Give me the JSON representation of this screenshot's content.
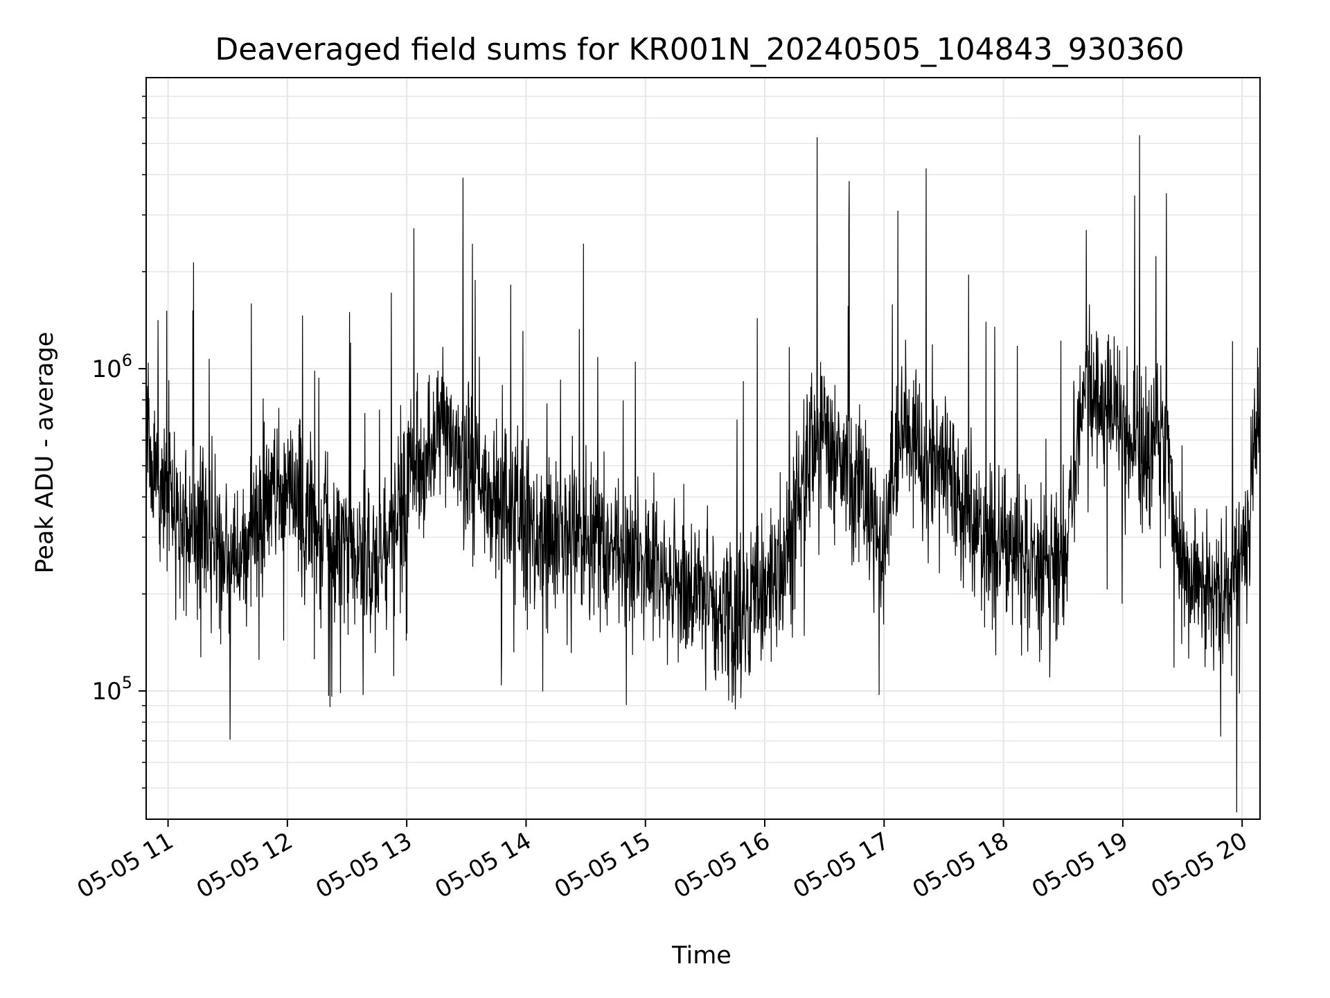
{
  "chart_data": {
    "type": "line",
    "title": "Deaveraged field sums for KR001N_20240505_104843_930360",
    "xlabel": "Time",
    "ylabel": "Peak ADU - average",
    "y_scale": "log",
    "ylim": [
      40000,
      8000000
    ],
    "xlim": [
      "2024-05-05 10:49",
      "2024-05-05 20:09"
    ],
    "grid": true,
    "legend": "none",
    "line_color": "#000000",
    "x_ticks": [
      {
        "value": "2024-05-05 11:00",
        "label": "05-05 11"
      },
      {
        "value": "2024-05-05 12:00",
        "label": "05-05 12"
      },
      {
        "value": "2024-05-05 13:00",
        "label": "05-05 13"
      },
      {
        "value": "2024-05-05 14:00",
        "label": "05-05 14"
      },
      {
        "value": "2024-05-05 15:00",
        "label": "05-05 15"
      },
      {
        "value": "2024-05-05 16:00",
        "label": "05-05 16"
      },
      {
        "value": "2024-05-05 17:00",
        "label": "05-05 17"
      },
      {
        "value": "2024-05-05 18:00",
        "label": "05-05 18"
      },
      {
        "value": "2024-05-05 19:00",
        "label": "05-05 19"
      },
      {
        "value": "2024-05-05 20:00",
        "label": "05-05 20"
      }
    ],
    "y_ticks": [
      {
        "value": 100000,
        "base": "10",
        "exp": "5"
      },
      {
        "value": 1000000,
        "base": "10",
        "exp": "6"
      }
    ],
    "series": [
      {
        "x": [
          "2024-05-05 10:49",
          "2024-05-05 11:00",
          "2024-05-05 11:10",
          "2024-05-05 11:20",
          "2024-05-05 11:30",
          "2024-05-05 11:40",
          "2024-05-05 11:50",
          "2024-05-05 12:00",
          "2024-05-05 12:10",
          "2024-05-05 12:20",
          "2024-05-05 12:30",
          "2024-05-05 12:40",
          "2024-05-05 12:50",
          "2024-05-05 13:00",
          "2024-05-05 13:10",
          "2024-05-05 13:20",
          "2024-05-05 13:30",
          "2024-05-05 13:40",
          "2024-05-05 13:50",
          "2024-05-05 14:00",
          "2024-05-05 14:10",
          "2024-05-05 14:20",
          "2024-05-05 14:30",
          "2024-05-05 14:40",
          "2024-05-05 14:50",
          "2024-05-05 15:00",
          "2024-05-05 15:10",
          "2024-05-05 15:20",
          "2024-05-05 15:30",
          "2024-05-05 15:40",
          "2024-05-05 15:50",
          "2024-05-05 16:00",
          "2024-05-05 16:10",
          "2024-05-05 16:20",
          "2024-05-05 16:30",
          "2024-05-05 16:40",
          "2024-05-05 16:50",
          "2024-05-05 17:00",
          "2024-05-05 17:10",
          "2024-05-05 17:20",
          "2024-05-05 17:30",
          "2024-05-05 17:40",
          "2024-05-05 17:50",
          "2024-05-05 18:00",
          "2024-05-05 18:10",
          "2024-05-05 18:20",
          "2024-05-05 18:30",
          "2024-05-05 18:40",
          "2024-05-05 18:50",
          "2024-05-05 19:00",
          "2024-05-05 19:10",
          "2024-05-05 19:20",
          "2024-05-05 19:30",
          "2024-05-05 19:40",
          "2024-05-05 19:50",
          "2024-05-05 20:00",
          "2024-05-05 20:09"
        ],
        "y": [
          600000,
          380000,
          330000,
          300000,
          250000,
          280000,
          400000,
          420000,
          350000,
          300000,
          320000,
          240000,
          260000,
          450000,
          520000,
          620000,
          480000,
          400000,
          380000,
          330000,
          290000,
          300000,
          310000,
          280000,
          260000,
          250000,
          230000,
          210000,
          190000,
          180000,
          170000,
          210000,
          230000,
          500000,
          620000,
          540000,
          400000,
          280000,
          650000,
          600000,
          520000,
          340000,
          300000,
          280000,
          260000,
          250000,
          260000,
          800000,
          750000,
          680000,
          560000,
          700000,
          220000,
          210000,
          200000,
          230000,
          800000
        ]
      }
    ]
  }
}
